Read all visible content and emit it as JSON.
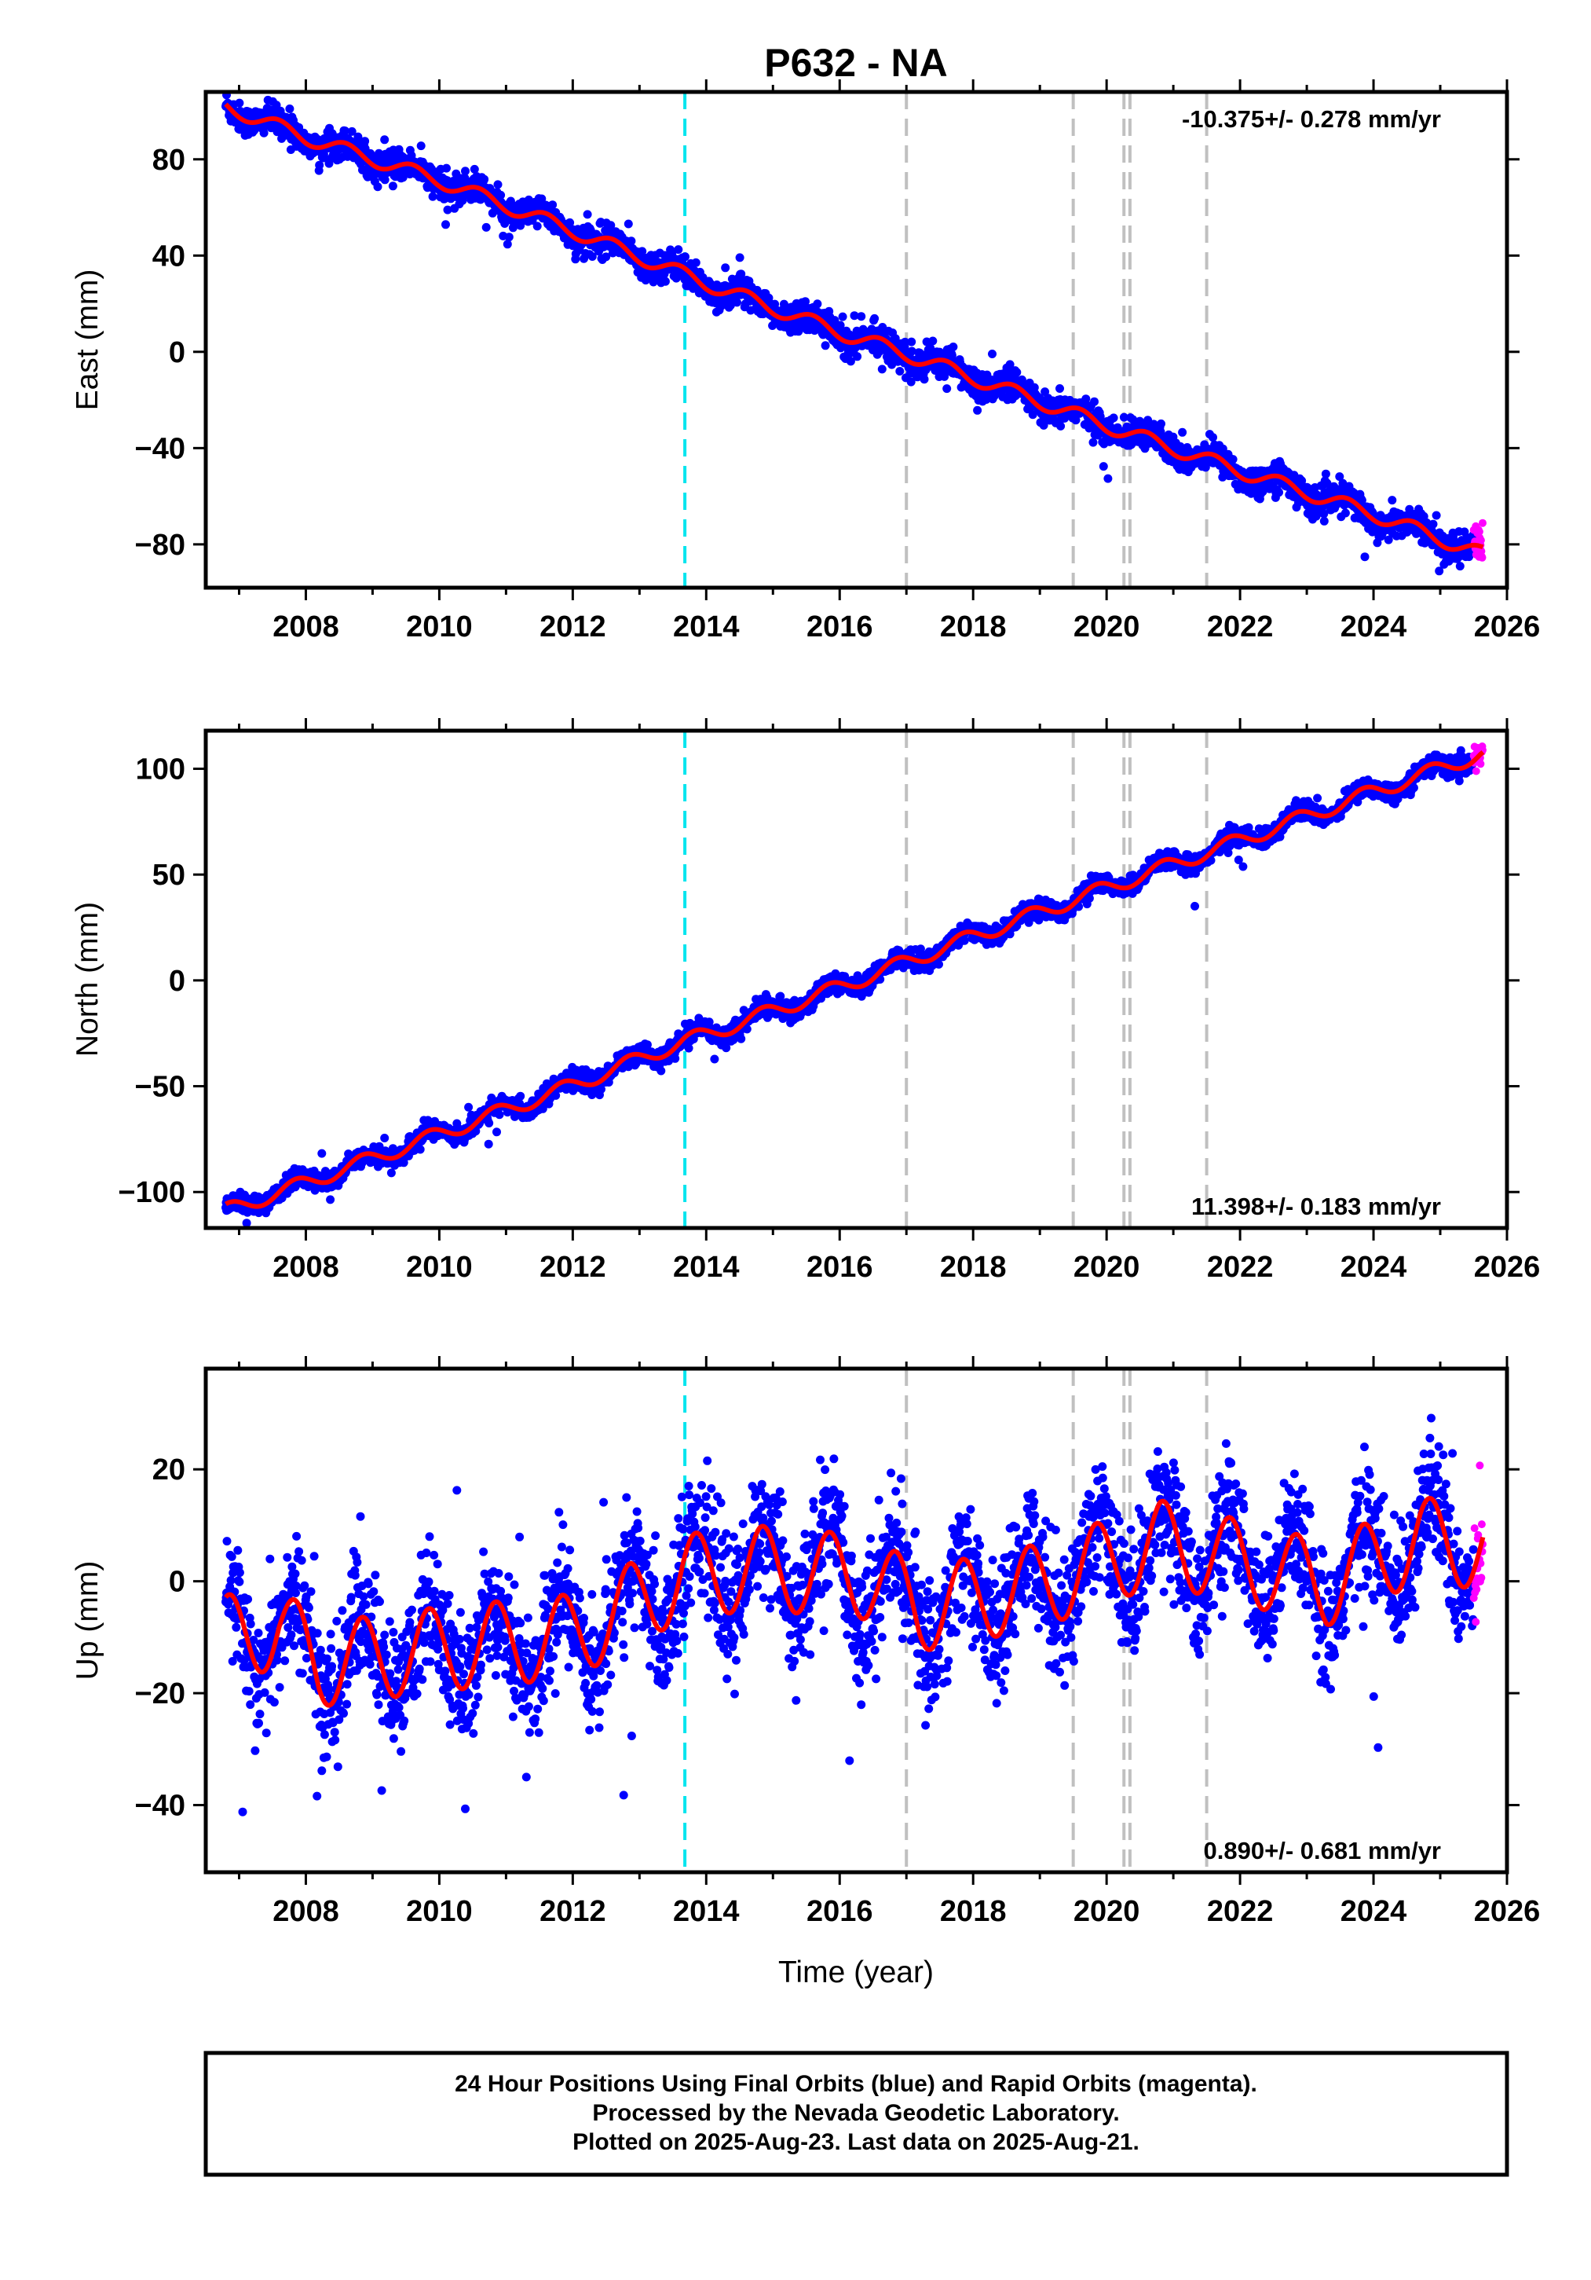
{
  "chart_data": {
    "type": "scatter",
    "title": "P632 - NA",
    "xlabel": "Time (year)",
    "xlim": [
      2006.5,
      2026.0
    ],
    "x_ticks": [
      "2008",
      "2010",
      "2012",
      "2014",
      "2016",
      "2018",
      "2020",
      "2022",
      "2024",
      "2026"
    ],
    "data_start": 2006.8,
    "data_end": 2025.64,
    "rapid_start": 2025.5,
    "equipment_change_lines": [
      2013.68
    ],
    "other_event_lines": [
      2017.0,
      2019.5,
      2020.26,
      2020.35,
      2021.5
    ],
    "colors": {
      "final_orbits": "#0000ff",
      "rapid_orbits": "#ff00ff",
      "model_fit": "#ff0000",
      "equipment_change": "#00e5ee",
      "other_events": "#c0c0c0"
    },
    "legend": "none",
    "grid": false,
    "panels": [
      {
        "component": "East",
        "ylabel": "East (mm)",
        "ylim": [
          -98,
          108
        ],
        "y_ticks": [
          "−80",
          "−40",
          "0",
          "40",
          "80"
        ],
        "rate": "-10.375+/- 0.278 mm/yr",
        "rate_position": "top-right",
        "model": {
          "start_value": 102,
          "end_value": -84,
          "annual_amplitude": 3.0,
          "annual_phase_year": 0.35,
          "offsets": []
        },
        "scatter_noise": 3.0,
        "key_points": [
          [
            2006.8,
            102
          ],
          [
            2008,
            88
          ],
          [
            2010,
            72
          ],
          [
            2012,
            50
          ],
          [
            2013.68,
            30
          ],
          [
            2014,
            26
          ],
          [
            2016,
            5
          ],
          [
            2017,
            -3
          ],
          [
            2018,
            -13
          ],
          [
            2020,
            -33
          ],
          [
            2022,
            -51
          ],
          [
            2024,
            -67
          ],
          [
            2025.6,
            -84
          ]
        ]
      },
      {
        "component": "North",
        "ylabel": "North (mm)",
        "ylim": [
          -117,
          118
        ],
        "y_ticks": [
          "−100",
          "−50",
          "0",
          "50",
          "100"
        ],
        "rate": "11.398+/- 0.183 mm/yr",
        "rate_position": "bottom-right",
        "model": {
          "start_value": -109,
          "end_value": 107,
          "annual_amplitude": 3.5,
          "annual_phase_year": 0.6,
          "offsets": []
        },
        "scatter_noise": 2.2,
        "key_points": [
          [
            2006.8,
            -109
          ],
          [
            2008,
            -96
          ],
          [
            2010,
            -73
          ],
          [
            2012,
            -50
          ],
          [
            2013.68,
            -27
          ],
          [
            2014,
            -25
          ],
          [
            2016,
            -3
          ],
          [
            2018,
            22
          ],
          [
            2020,
            45
          ],
          [
            2022,
            67
          ],
          [
            2024,
            90
          ],
          [
            2025.6,
            107
          ]
        ]
      },
      {
        "component": "Up",
        "ylabel": "Up (mm)",
        "ylim": [
          -52,
          38
        ],
        "y_ticks": [
          "−40",
          "−20",
          "0",
          "20"
        ],
        "rate": "0.890+/- 0.681 mm/yr",
        "rate_position": "bottom-right",
        "model": {
          "start_value": -12,
          "end_value": 4,
          "annual_amplitude": 7.5,
          "annual_phase_year": 0.6,
          "offsets": [
            [
              2013.68,
              11
            ],
            [
              2020.3,
              3
            ]
          ]
        },
        "scatter_noise": 5.5,
        "key_points": [
          [
            2006.8,
            -8
          ],
          [
            2007.6,
            -5
          ],
          [
            2008.2,
            -19
          ],
          [
            2010,
            -15
          ],
          [
            2012,
            -12
          ],
          [
            2013.68,
            8
          ],
          [
            2014.8,
            10
          ],
          [
            2016.5,
            5
          ],
          [
            2017.2,
            -7
          ],
          [
            2019,
            0
          ],
          [
            2020.8,
            14
          ],
          [
            2022.3,
            4
          ],
          [
            2023.3,
            -3
          ],
          [
            2024.7,
            12
          ],
          [
            2025.6,
            8
          ]
        ]
      }
    ]
  },
  "footer": {
    "line1": "24 Hour Positions Using Final Orbits (blue) and Rapid Orbits (magenta).",
    "line2": "Processed by the Nevada Geodetic Laboratory.",
    "line3": "Plotted on 2025-Aug-23. Last data on 2025-Aug-21."
  }
}
